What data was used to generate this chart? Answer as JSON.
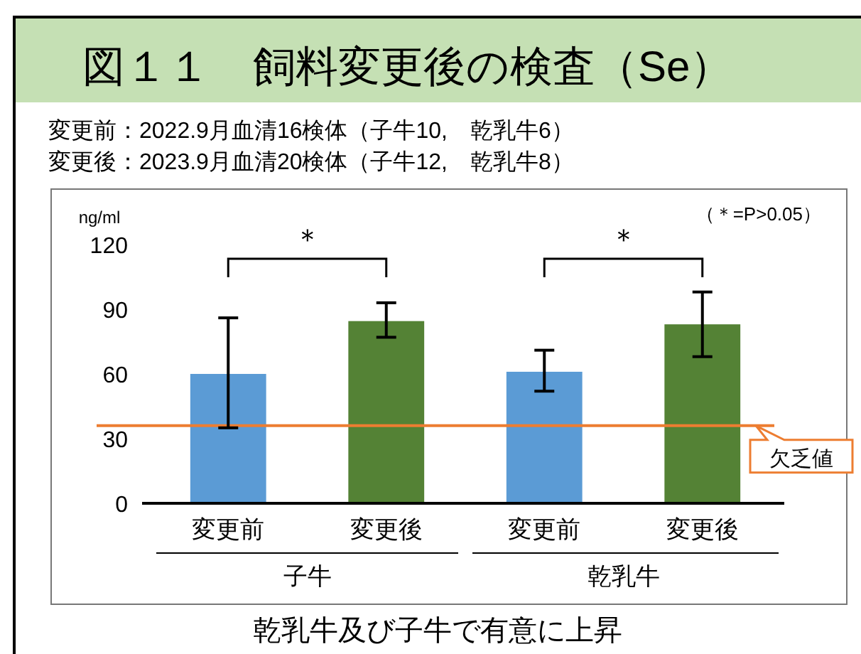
{
  "chart_data": {
    "type": "bar",
    "title": "図１１　飼料変更後の検査（Se）",
    "subtitle": "変更前：2022.9月血清16検体（子牛10,　乾乳牛6）",
    "ylabel": "ng/ml",
    "categories": [
      "変更前",
      "変更後",
      "変更前",
      "変更後"
    ],
    "values": [
      60,
      84.5,
      61,
      83
    ],
    "colors": [
      "#5b9bd5",
      "#548235",
      "#5b9bd5",
      "#548235"
    ],
    "errors": [
      [
        35,
        86
      ],
      [
        77,
        93
      ],
      [
        52,
        71
      ],
      [
        68,
        98
      ]
    ],
    "ylim": [
      0,
      120
    ],
    "yticks": [
      0,
      30,
      60,
      90,
      120
    ],
    "grid": false,
    "ref_lines": [
      {
        "axis": "y",
        "value": 36,
        "label": "欠乏値",
        "color": "#ed7d31"
      }
    ],
    "annotations": [
      "＊",
      "＊",
      "（＊=P>0.05）",
      "子牛",
      "乾乳牛",
      "乾乳牛及び子牛で有意に上昇",
      "変更後：2023.9月血清20検体（子牛12,　乾乳牛8）"
    ]
  }
}
